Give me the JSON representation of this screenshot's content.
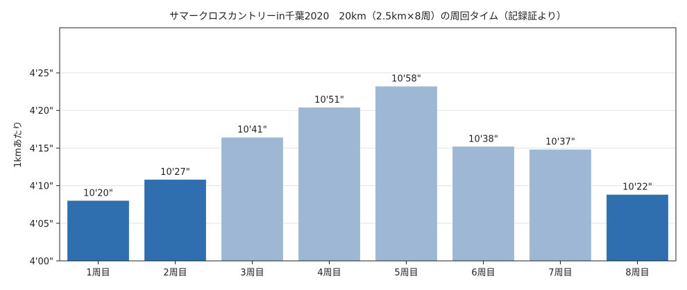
{
  "chart_data": {
    "type": "bar",
    "title": "サマークロスカントリーin千葉2020　20km（2.5km×8周）の周回タイム（記録証より）",
    "xlabel": "",
    "ylabel": "1kmあたり",
    "categories": [
      "1周目",
      "2周目",
      "3周目",
      "4周目",
      "5周目",
      "6周目",
      "7周目",
      "8周目"
    ],
    "values_seconds_per_km": [
      248,
      250.8,
      256.4,
      260.4,
      263.2,
      255.2,
      254.8,
      248.8
    ],
    "data_labels": [
      "10'20\"",
      "10'27\"",
      "10'41\"",
      "10'51\"",
      "10'58\"",
      "10'38\"",
      "10'37\"",
      "10'22\""
    ],
    "highlighted": [
      true,
      true,
      false,
      false,
      false,
      false,
      false,
      true
    ],
    "colors": {
      "highlight": "#2f6fb0",
      "normal": "#9db7d5"
    },
    "ylim_seconds_per_km": [
      240,
      271
    ],
    "yticks_seconds": [
      240,
      245,
      250,
      255,
      260,
      265
    ],
    "ytick_labels": [
      "4'00\"",
      "4'05\"",
      "4'10\"",
      "4'15\"",
      "4'20\"",
      "4'25\""
    ],
    "grid": true
  }
}
